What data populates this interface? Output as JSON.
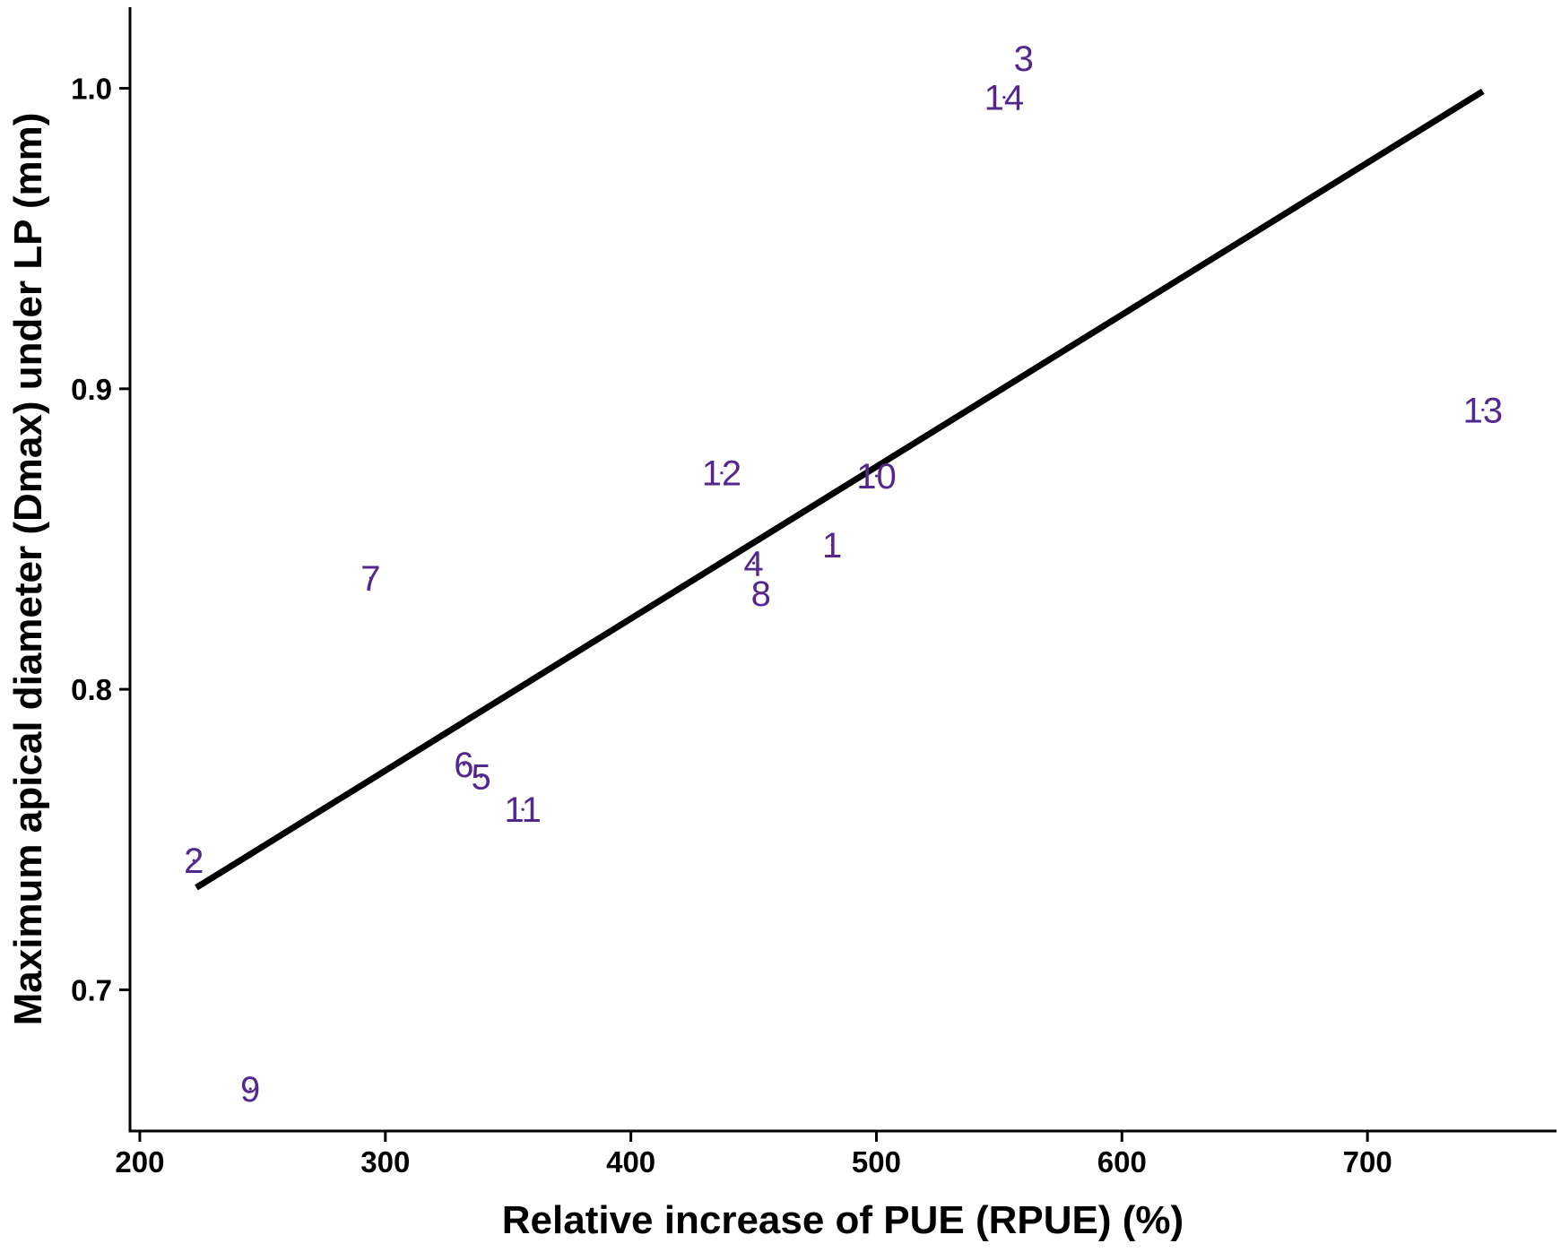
{
  "chart_data": {
    "type": "scatter",
    "xlabel": "Relative increase of PUE (RPUE) (%)",
    "ylabel": "Maximum apical diameter (Dmax) under LP (mm)",
    "xlim": [
      196,
      777
    ],
    "ylim": [
      0.653,
      1.027
    ],
    "xticks": [
      200,
      300,
      400,
      500,
      600,
      700
    ],
    "yticks": [
      0.7,
      0.8,
      0.9,
      1.0
    ],
    "xtick_labels": [
      "200",
      "300",
      "400",
      "500",
      "600",
      "700"
    ],
    "ytick_labels": [
      "0.7",
      "0.8",
      "0.9",
      "1.0"
    ],
    "grid": false,
    "legend": "none",
    "point_color": "#54278f",
    "points": [
      {
        "label": "1",
        "x": 482,
        "y": 0.848
      },
      {
        "label": "2",
        "x": 222,
        "y": 0.743
      },
      {
        "label": "3",
        "x": 560,
        "y": 1.01
      },
      {
        "label": "4",
        "x": 450,
        "y": 0.842
      },
      {
        "label": "5",
        "x": 339,
        "y": 0.771
      },
      {
        "label": "6",
        "x": 332,
        "y": 0.775
      },
      {
        "label": "7",
        "x": 294,
        "y": 0.837
      },
      {
        "label": "8",
        "x": 453,
        "y": 0.832
      },
      {
        "label": "9",
        "x": 245,
        "y": 0.667
      },
      {
        "label": "10",
        "x": 500,
        "y": 0.871
      },
      {
        "label": "11",
        "x": 356,
        "y": 0.76
      },
      {
        "label": "12",
        "x": 437,
        "y": 0.872
      },
      {
        "label": "13",
        "x": 747,
        "y": 0.893
      },
      {
        "label": "14",
        "x": 552,
        "y": 0.997
      }
    ],
    "fit_line": {
      "x": [
        223,
        747
      ],
      "y": [
        0.734,
        0.999
      ]
    }
  }
}
